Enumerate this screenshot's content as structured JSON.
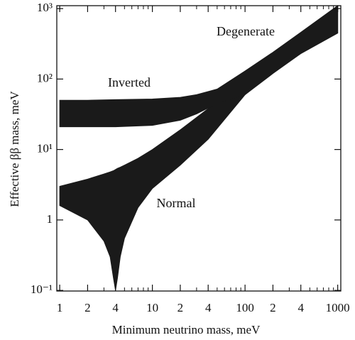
{
  "chart_data": {
    "type": "band",
    "x_label": "Minimum neutrino mass, meV",
    "y_label": "Effective ββ mass, meV",
    "annotations": [
      "Degenerate",
      "Inverted",
      "Normal"
    ],
    "xscale": "log",
    "yscale": "log",
    "xlim": [
      0.93,
      1080
    ],
    "ylim": [
      0.098,
      1100
    ],
    "xticks": [
      1,
      {
        "value": 2,
        "label": "2"
      },
      {
        "value": 4,
        "label": "4"
      },
      10,
      {
        "value": 20,
        "label": "2"
      },
      {
        "value": 40,
        "label": "4"
      },
      100,
      {
        "value": 200,
        "label": "2"
      },
      {
        "value": 400,
        "label": "4"
      },
      1000
    ],
    "xminorticks": [
      3,
      5,
      6,
      7,
      8,
      9,
      30,
      50,
      60,
      70,
      80,
      90,
      300,
      500,
      600,
      700,
      800,
      900
    ],
    "yticks": [
      {
        "value": 0.1,
        "label": "10⁻¹"
      },
      1,
      {
        "value": 10,
        "label": "10¹"
      },
      {
        "value": 100,
        "label": "10²"
      },
      {
        "value": 1000,
        "label": "10³"
      }
    ],
    "series": [
      {
        "color": "#1a1a1a",
        "x": [
          1,
          2,
          4,
          10,
          20,
          30,
          50,
          100,
          200,
          400,
          1000
        ],
        "upper": [
          50,
          50,
          51,
          52,
          55,
          60,
          72,
          130,
          240,
          460,
          1100
        ],
        "lower": [
          21,
          21,
          21,
          22,
          26,
          32,
          45,
          60,
          120,
          230,
          450
        ]
      },
      {
        "color": "#1a1a1a",
        "x": [
          1,
          2,
          3,
          3.5,
          3.8,
          4,
          4.2,
          4.5,
          5,
          7,
          10,
          20,
          40,
          100,
          200,
          400,
          1000
        ],
        "upper": [
          3,
          3.8,
          4.5,
          4.8,
          5,
          5.2,
          5.4,
          5.6,
          6,
          7.5,
          10,
          19,
          38,
          97,
          195,
          390,
          980
        ],
        "lower": [
          1.6,
          1.0,
          0.5,
          0.3,
          0.15,
          0.1,
          0.15,
          0.3,
          0.55,
          1.5,
          2.8,
          6,
          14,
          60,
          130,
          230,
          450
        ]
      }
    ]
  }
}
